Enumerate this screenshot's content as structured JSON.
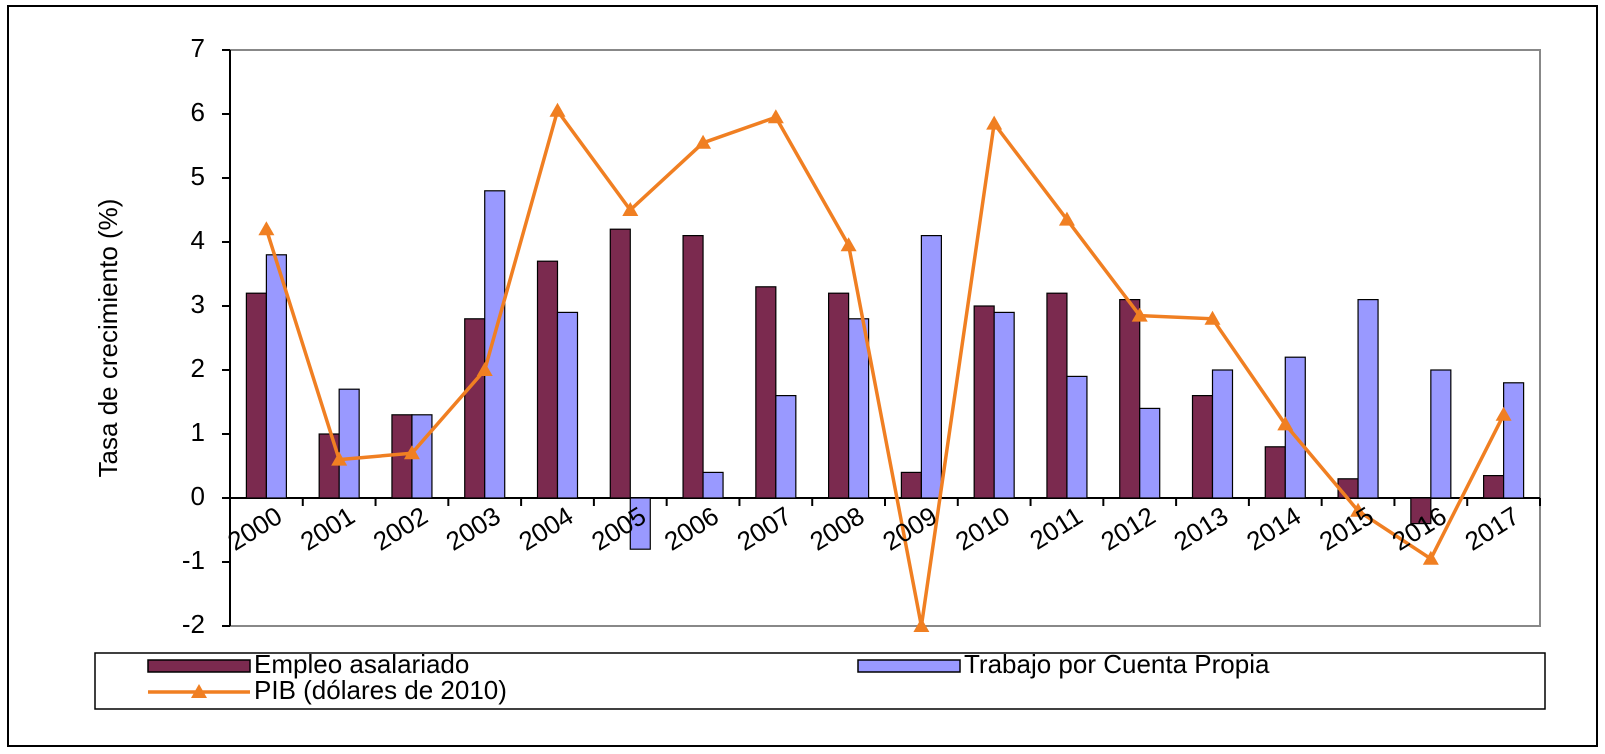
{
  "chart_data": {
    "type": "bar",
    "y_label": "Tasa de crecimiento (%)",
    "categories": [
      "2000",
      "2001",
      "2002",
      "2003",
      "2004",
      "2005",
      "2006",
      "2007",
      "2008",
      "2009",
      "2010",
      "2011",
      "2012",
      "2013",
      "2014",
      "2015",
      "2016",
      "2017"
    ],
    "series": [
      {
        "name": "Empleo asalariado",
        "type": "bar",
        "color": "#7b2a4f",
        "values": [
          3.2,
          1.0,
          1.3,
          2.8,
          3.7,
          4.2,
          4.1,
          3.3,
          3.2,
          0.4,
          3.0,
          3.2,
          3.1,
          1.6,
          0.8,
          0.3,
          -0.4,
          0.35
        ]
      },
      {
        "name": "Trabajo por Cuenta Propia",
        "type": "bar",
        "color": "#9999ff",
        "values": [
          3.8,
          1.7,
          1.3,
          4.8,
          2.9,
          -0.8,
          0.4,
          1.6,
          2.8,
          4.1,
          2.9,
          1.9,
          1.4,
          2.0,
          2.2,
          3.1,
          2.0,
          1.8
        ]
      },
      {
        "name": "PIB (dólares de 2010)",
        "type": "line",
        "color": "#f07f22",
        "values": [
          4.2,
          0.6,
          0.7,
          2.0,
          6.05,
          4.5,
          5.55,
          5.95,
          3.95,
          -2.0,
          5.85,
          4.35,
          2.85,
          2.8,
          1.15,
          -0.2,
          -0.95,
          1.3
        ]
      }
    ],
    "ylim": [
      -2,
      7
    ],
    "yticks": [
      -2,
      -1,
      0,
      1,
      2,
      3,
      4,
      5,
      6,
      7
    ],
    "grid": false
  }
}
